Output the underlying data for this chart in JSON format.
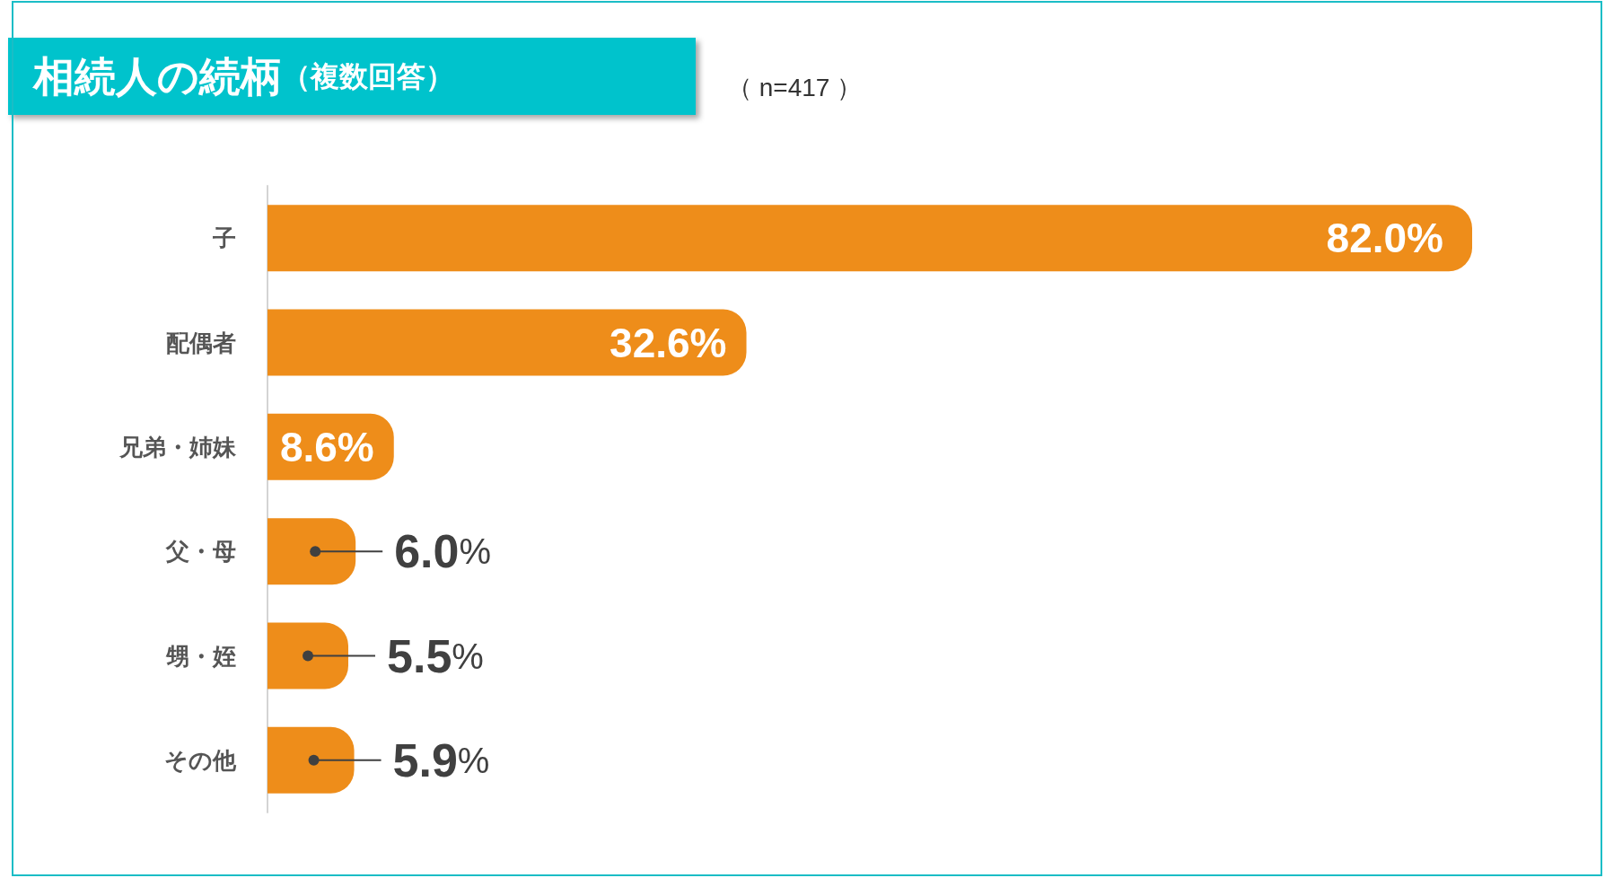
{
  "chart_data": {
    "type": "bar",
    "orientation": "horizontal",
    "title": "相続人の続柄",
    "subtitle": "（複数回答）",
    "annotations": [
      "（ n=417 ）"
    ],
    "categories": [
      "子",
      "配偶者",
      "兄弟・姉妹",
      "父・母",
      "甥・姪",
      "その他"
    ],
    "values": [
      82.0,
      32.6,
      8.6,
      6.0,
      5.5,
      5.9
    ],
    "color": "#ee8d1a",
    "value_labels": [
      "82.0%",
      "32.6%",
      "8.6%",
      "6.0%",
      "5.5%",
      "5.9%"
    ]
  }
}
